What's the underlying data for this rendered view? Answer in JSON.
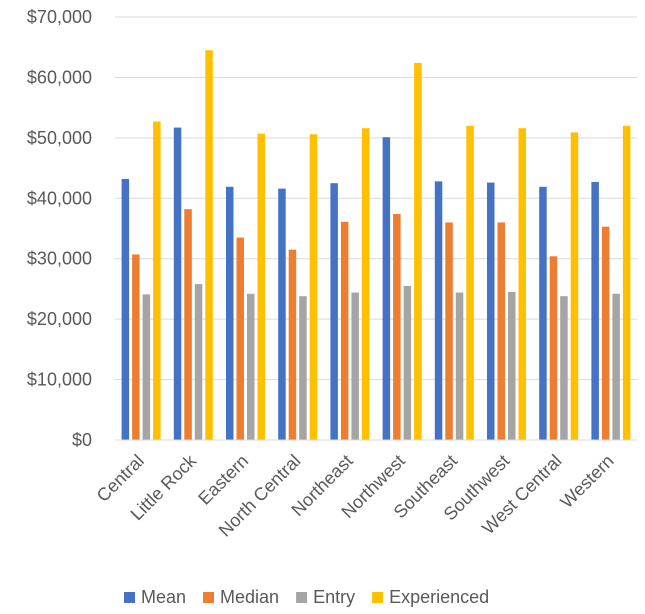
{
  "chart_data": {
    "type": "bar",
    "categories": [
      "Central",
      "Little Rock",
      "Eastern",
      "North Central",
      "Northeast",
      "Northwest",
      "Southeast",
      "Southwest",
      "West Central",
      "Western"
    ],
    "series": [
      {
        "name": "Mean",
        "color": "#4472C4",
        "values": [
          43200,
          51700,
          41900,
          41600,
          42500,
          50100,
          42800,
          42600,
          41900,
          42700
        ]
      },
      {
        "name": "Median",
        "color": "#ED7D31",
        "values": [
          30700,
          38200,
          33500,
          31500,
          36100,
          37400,
          36000,
          36000,
          30400,
          35300
        ]
      },
      {
        "name": "Entry",
        "color": "#A5A5A5",
        "values": [
          24100,
          25800,
          24200,
          23800,
          24400,
          25500,
          24400,
          24500,
          23800,
          24200
        ]
      },
      {
        "name": "Experienced",
        "color": "#FFC000",
        "values": [
          52700,
          64500,
          50700,
          50600,
          51600,
          62400,
          52000,
          51600,
          50900,
          52000
        ]
      }
    ],
    "y_ticks": [
      "$0",
      "$10,000",
      "$20,000",
      "$30,000",
      "$40,000",
      "$50,000",
      "$60,000",
      "$70,000"
    ],
    "ylim": [
      0,
      70000
    ],
    "grid": true,
    "legend_position": "bottom",
    "title": "",
    "xlabel": "",
    "ylabel": ""
  }
}
